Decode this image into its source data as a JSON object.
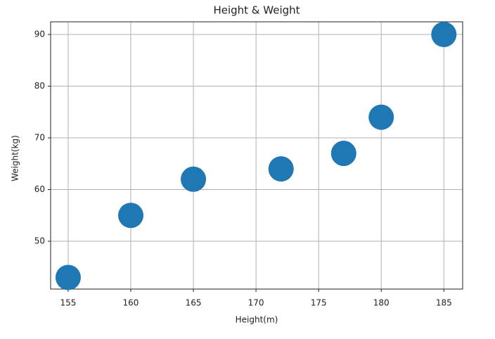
{
  "chart_data": {
    "type": "scatter",
    "title": "Height & Weight",
    "x_label": "Height(m)",
    "y_label": "Weight(kg)",
    "x": [
      155,
      160,
      165,
      172,
      177,
      180,
      185
    ],
    "values": [
      43,
      55,
      62,
      64,
      67,
      74,
      90
    ],
    "color": "#1f77b4",
    "xlim": [
      153.6,
      186.5
    ],
    "xticks": [
      155,
      160,
      165,
      170,
      175,
      180,
      185
    ],
    "ylim": [
      40.75,
      92.45
    ],
    "yticks": [
      50,
      60,
      70,
      80,
      90
    ],
    "grid": true
  }
}
